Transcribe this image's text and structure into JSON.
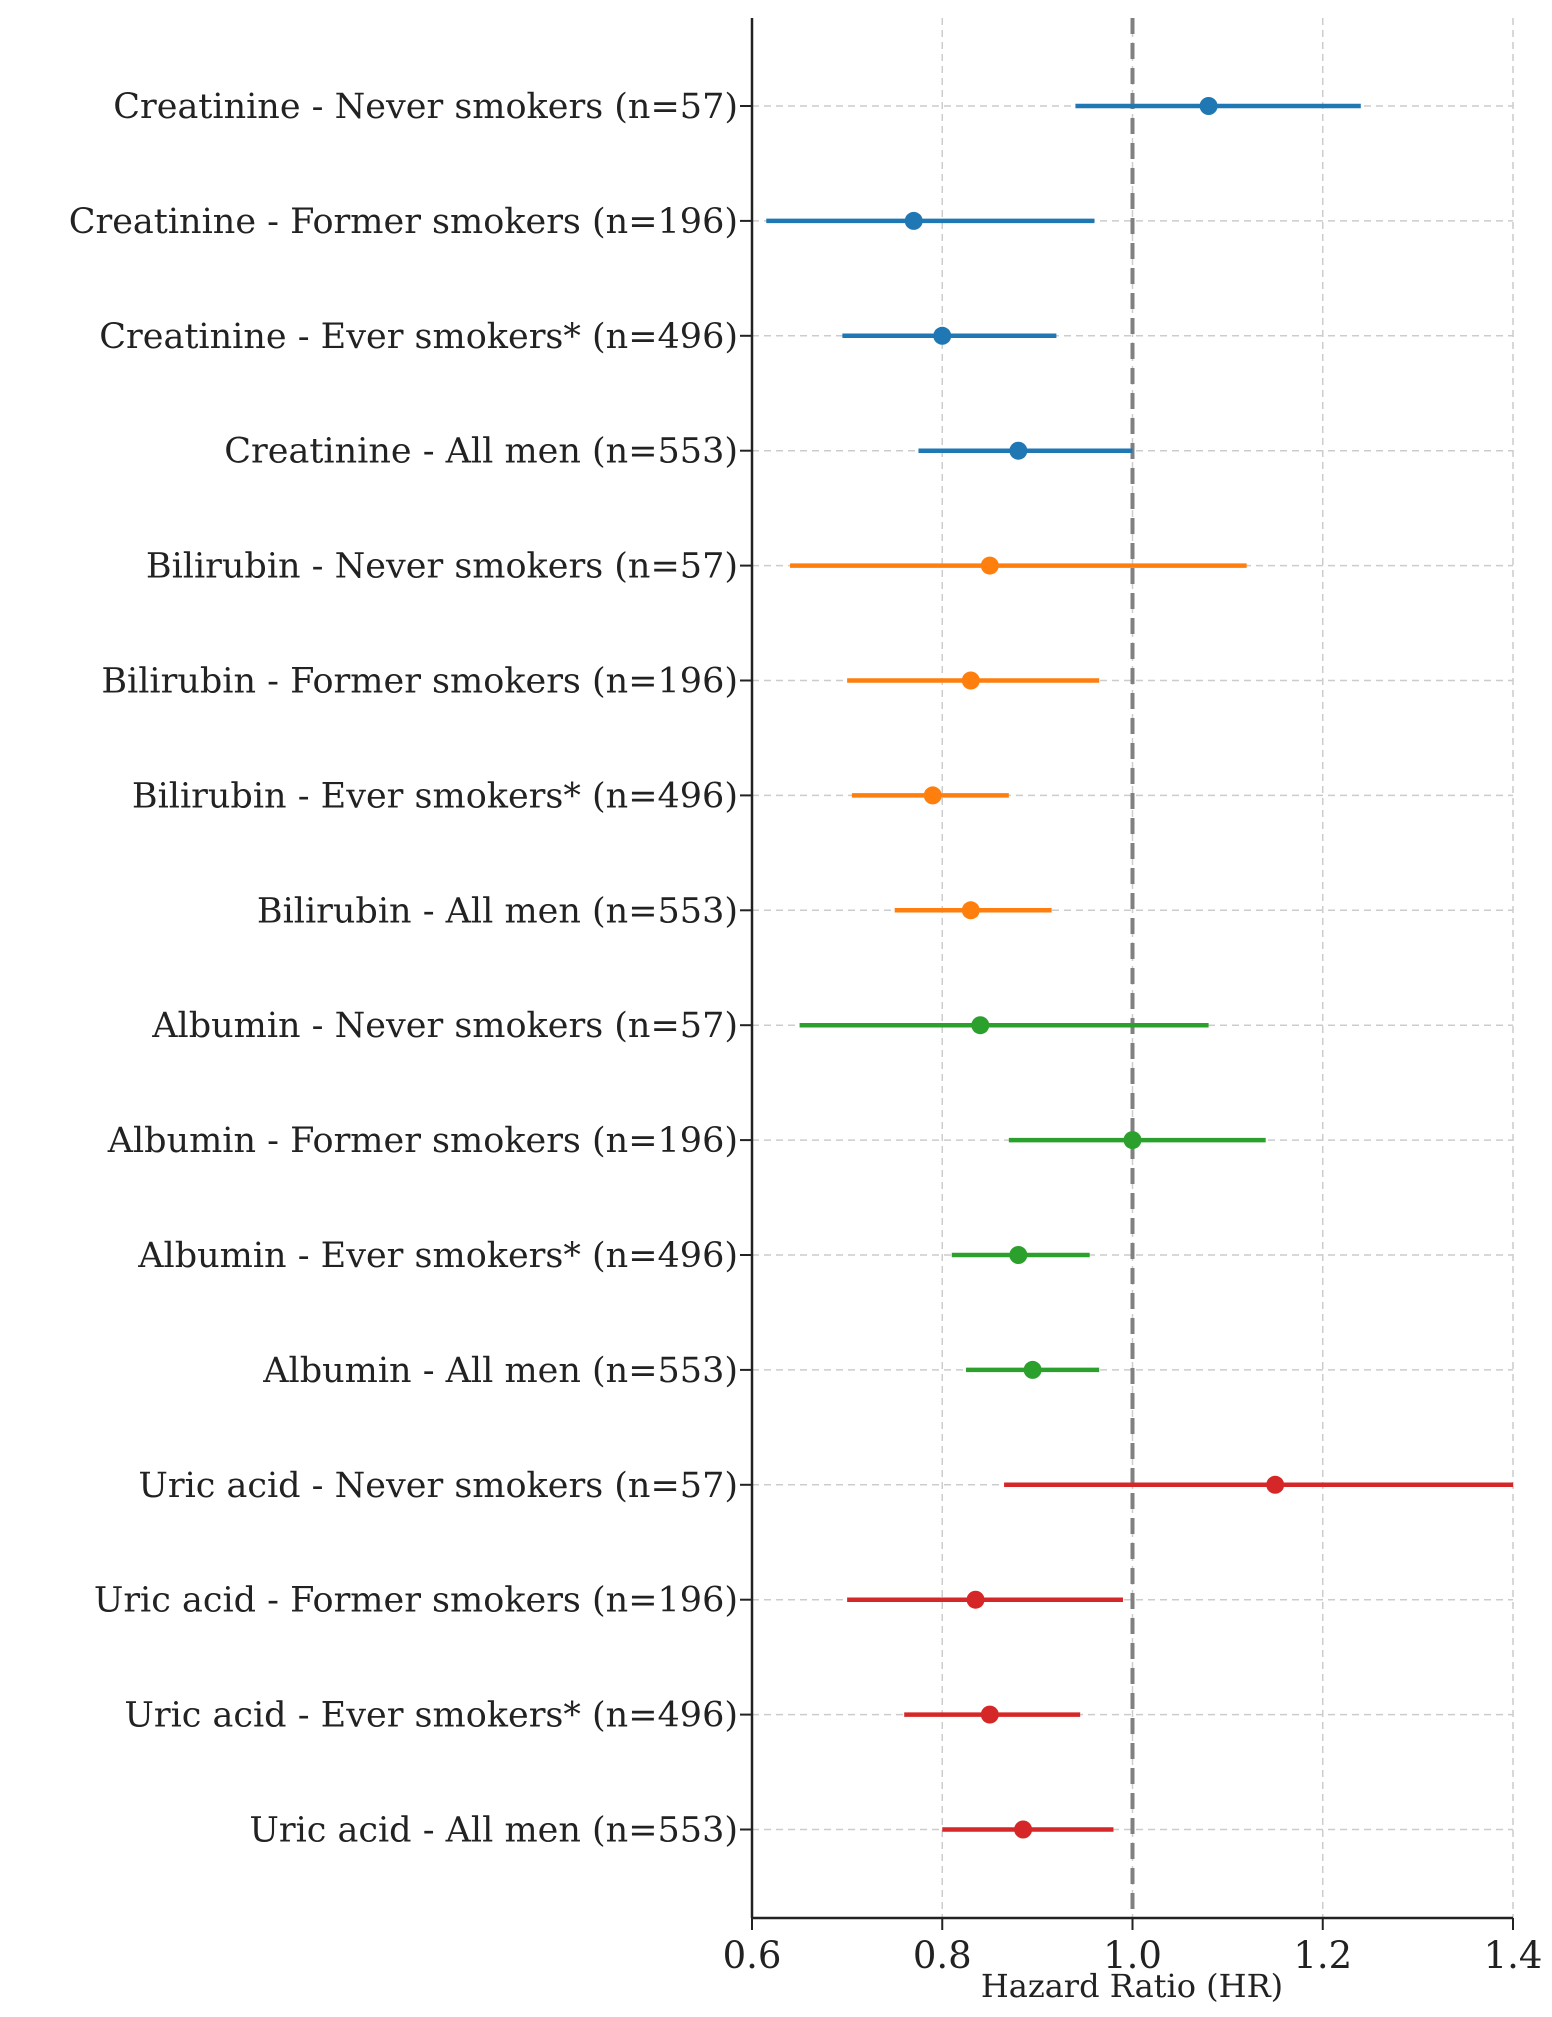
{
  "chart_data": {
    "type": "forest",
    "title": "",
    "xlabel": "Hazard Ratio (HR)",
    "ylabel": "",
    "xlim": [
      0.6,
      1.4
    ],
    "xticks": [
      0.6,
      0.8,
      1.0,
      1.2,
      1.4
    ],
    "xtick_labels": [
      "0.6",
      "0.8",
      "1.0",
      "1.2",
      "1.4"
    ],
    "reference_line": 1.0,
    "grid": true,
    "series_colors": {
      "Creatinine": "#1f77b4",
      "Bilirubin": "#ff7f0e",
      "Albumin": "#2ca02c",
      "Uric acid": "#d62728"
    },
    "rows": [
      {
        "label": "Creatinine - Never smokers (n=57)",
        "group": "Creatinine",
        "hr": 1.08,
        "lower": 0.94,
        "upper": 1.24
      },
      {
        "label": "Creatinine - Former smokers (n=196)",
        "group": "Creatinine",
        "hr": 0.77,
        "lower": 0.615,
        "upper": 0.96
      },
      {
        "label": "Creatinine - Ever smokers* (n=496)",
        "group": "Creatinine",
        "hr": 0.8,
        "lower": 0.695,
        "upper": 0.92
      },
      {
        "label": "Creatinine - All men (n=553)",
        "group": "Creatinine",
        "hr": 0.88,
        "lower": 0.775,
        "upper": 1.0
      },
      {
        "label": "Bilirubin - Never smokers (n=57)",
        "group": "Bilirubin",
        "hr": 0.85,
        "lower": 0.64,
        "upper": 1.12
      },
      {
        "label": "Bilirubin - Former smokers (n=196)",
        "group": "Bilirubin",
        "hr": 0.83,
        "lower": 0.7,
        "upper": 0.965
      },
      {
        "label": "Bilirubin - Ever smokers* (n=496)",
        "group": "Bilirubin",
        "hr": 0.79,
        "lower": 0.705,
        "upper": 0.87
      },
      {
        "label": "Bilirubin - All men (n=553)",
        "group": "Bilirubin",
        "hr": 0.83,
        "lower": 0.75,
        "upper": 0.915
      },
      {
        "label": "Albumin - Never smokers (n=57)",
        "group": "Albumin",
        "hr": 0.84,
        "lower": 0.65,
        "upper": 1.08
      },
      {
        "label": "Albumin - Former smokers (n=196)",
        "group": "Albumin",
        "hr": 1.0,
        "lower": 0.87,
        "upper": 1.14
      },
      {
        "label": "Albumin - Ever smokers* (n=496)",
        "group": "Albumin",
        "hr": 0.88,
        "lower": 0.81,
        "upper": 0.955
      },
      {
        "label": "Albumin - All men (n=553)",
        "group": "Albumin",
        "hr": 0.895,
        "lower": 0.825,
        "upper": 0.965
      },
      {
        "label": "Uric acid - Never smokers (n=57)",
        "group": "Uric acid",
        "hr": 1.15,
        "lower": 0.865,
        "upper": 1.4
      },
      {
        "label": "Uric acid - Former smokers (n=196)",
        "group": "Uric acid",
        "hr": 0.835,
        "lower": 0.7,
        "upper": 0.99
      },
      {
        "label": "Uric acid - Ever smokers* (n=496)",
        "group": "Uric acid",
        "hr": 0.85,
        "lower": 0.76,
        "upper": 0.945
      },
      {
        "label": "Uric acid - All men (n=553)",
        "group": "Uric acid",
        "hr": 0.885,
        "lower": 0.8,
        "upper": 0.98
      }
    ]
  }
}
